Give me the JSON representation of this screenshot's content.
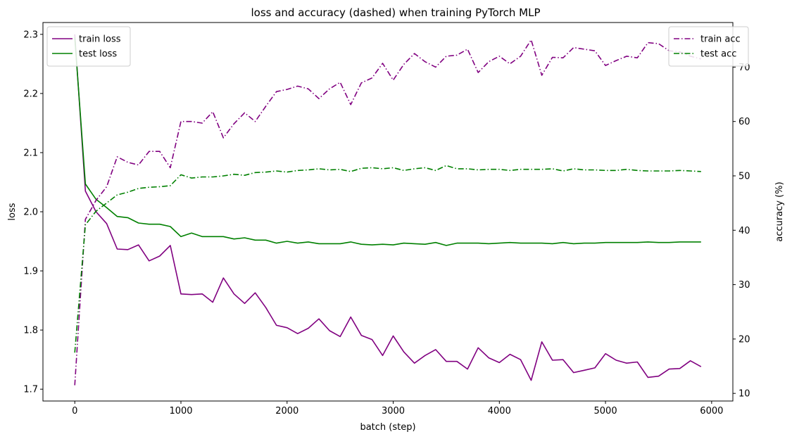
{
  "chart_data": {
    "type": "line",
    "title": "loss and accuracy (dashed) when training PyTorch MLP",
    "xlabel": "batch (step)",
    "ylabel": "loss",
    "y2label": "accuracy (%)",
    "xlim": [
      -300,
      6200
    ],
    "ylim": [
      1.68,
      2.32
    ],
    "y2lim": [
      8.6,
      78.2
    ],
    "xticks": [
      0,
      1000,
      2000,
      3000,
      4000,
      5000,
      6000
    ],
    "yticks": [
      1.7,
      1.8,
      1.9,
      2.0,
      2.1,
      2.2,
      2.3
    ],
    "y2ticks": [
      10,
      20,
      30,
      40,
      50,
      60,
      70
    ],
    "grid": false,
    "legend_left": "upper-left",
    "legend_right": "upper-right",
    "x": [
      0,
      100,
      200,
      300,
      400,
      500,
      600,
      700,
      800,
      900,
      1000,
      1100,
      1200,
      1300,
      1400,
      1500,
      1600,
      1700,
      1800,
      1900,
      2000,
      2100,
      2200,
      2300,
      2400,
      2500,
      2600,
      2700,
      2800,
      2900,
      3000,
      3100,
      3200,
      3300,
      3400,
      3500,
      3600,
      3700,
      3800,
      3900,
      4000,
      4100,
      4200,
      4300,
      4400,
      4500,
      4600,
      4700,
      4800,
      4900,
      5000,
      5100,
      5200,
      5300,
      5400,
      5500,
      5600,
      5700,
      5800,
      5900
    ],
    "series": [
      {
        "name": "train loss",
        "axis": "left",
        "style": "solid",
        "color": "#800080",
        "values": [
          2.3,
          2.035,
          2.0,
          1.98,
          1.937,
          1.936,
          1.944,
          1.917,
          1.925,
          1.943,
          1.861,
          1.86,
          1.861,
          1.847,
          1.888,
          1.861,
          1.845,
          1.863,
          1.838,
          1.808,
          1.804,
          1.794,
          1.803,
          1.819,
          1.799,
          1.789,
          1.822,
          1.791,
          1.784,
          1.757,
          1.79,
          1.763,
          1.744,
          1.757,
          1.767,
          1.747,
          1.747,
          1.734,
          1.77,
          1.753,
          1.745,
          1.759,
          1.75,
          1.715,
          1.78,
          1.749,
          1.75,
          1.728,
          1.732,
          1.736,
          1.76,
          1.749,
          1.744,
          1.746,
          1.72,
          1.722,
          1.734,
          1.735,
          1.748,
          1.738
        ]
      },
      {
        "name": "test loss",
        "axis": "left",
        "style": "solid",
        "color": "#008000",
        "values": [
          2.295,
          2.047,
          2.021,
          2.007,
          1.992,
          1.99,
          1.981,
          1.979,
          1.979,
          1.975,
          1.958,
          1.964,
          1.958,
          1.958,
          1.958,
          1.954,
          1.956,
          1.952,
          1.952,
          1.947,
          1.95,
          1.947,
          1.949,
          1.946,
          1.946,
          1.946,
          1.949,
          1.945,
          1.944,
          1.945,
          1.944,
          1.947,
          1.946,
          1.945,
          1.948,
          1.943,
          1.947,
          1.947,
          1.947,
          1.946,
          1.947,
          1.948,
          1.947,
          1.947,
          1.947,
          1.946,
          1.948,
          1.946,
          1.947,
          1.947,
          1.948,
          1.948,
          1.948,
          1.948,
          1.949,
          1.948,
          1.948,
          1.949,
          1.949,
          1.949
        ]
      },
      {
        "name": "train acc",
        "axis": "right",
        "style": "dashdot",
        "color": "#800080",
        "values": [
          11.5,
          42.0,
          45.5,
          48.0,
          53.5,
          52.5,
          52.0,
          54.5,
          54.5,
          51.5,
          60.0,
          60.0,
          59.7,
          61.8,
          57.0,
          59.6,
          61.6,
          60.0,
          62.8,
          65.5,
          65.9,
          66.5,
          66.0,
          64.2,
          66.0,
          67.2,
          63.1,
          67.1,
          68.0,
          70.7,
          67.6,
          70.5,
          72.5,
          71.0,
          70.0,
          72.0,
          72.2,
          73.3,
          69.0,
          71.0,
          72.0,
          70.6,
          72.0,
          75.0,
          68.5,
          71.8,
          71.7,
          73.6,
          73.3,
          73.0,
          70.3,
          71.2,
          72.0,
          71.7,
          74.5,
          74.3,
          73.0,
          72.8,
          72.0,
          71.5
        ]
      },
      {
        "name": "test acc",
        "axis": "right",
        "style": "dashdot",
        "color": "#008000",
        "values": [
          17.5,
          41.0,
          43.5,
          45.0,
          46.5,
          47.0,
          47.7,
          47.9,
          48.0,
          48.2,
          50.2,
          49.6,
          49.8,
          49.8,
          50.0,
          50.3,
          50.1,
          50.6,
          50.7,
          50.9,
          50.7,
          51.0,
          51.1,
          51.3,
          51.1,
          51.2,
          50.8,
          51.4,
          51.5,
          51.3,
          51.5,
          51.0,
          51.3,
          51.5,
          51.0,
          51.9,
          51.3,
          51.3,
          51.1,
          51.2,
          51.2,
          51.0,
          51.2,
          51.2,
          51.2,
          51.3,
          50.9,
          51.3,
          51.1,
          51.1,
          51.0,
          51.0,
          51.2,
          51.0,
          50.9,
          50.9,
          50.9,
          51.0,
          50.9,
          50.8
        ]
      }
    ]
  }
}
